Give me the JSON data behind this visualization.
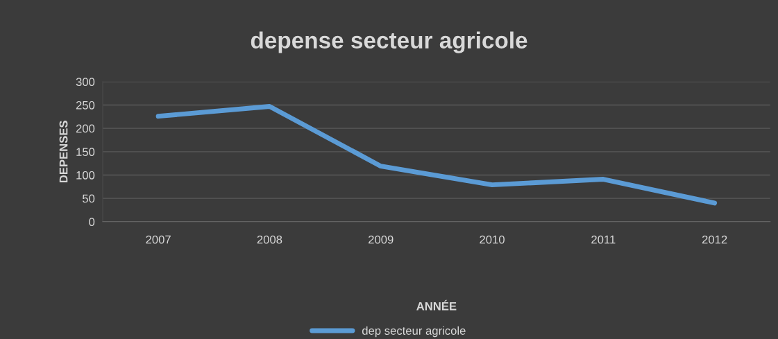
{
  "chart_data": {
    "type": "line",
    "title": "depense secteur agricole",
    "xlabel": "ANNÉE",
    "ylabel": "DEPENSES",
    "categories": [
      "2007",
      "2008",
      "2009",
      "2010",
      "2011",
      "2012"
    ],
    "series": [
      {
        "name": "dep secteur agricole",
        "color": "#5b9bd5",
        "values": [
          226,
          247,
          119,
          79,
          91,
          40
        ]
      }
    ],
    "ylim": [
      0,
      300
    ],
    "yticks": [
      0,
      50,
      100,
      150,
      200,
      250,
      300
    ],
    "grid": "y",
    "legend": "bottom",
    "marker": "none",
    "line_style": "solid"
  }
}
